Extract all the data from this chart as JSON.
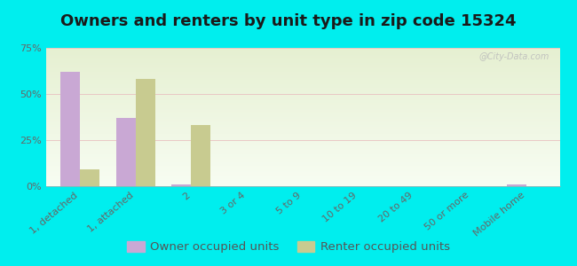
{
  "title": "Owners and renters by unit type in zip code 15324",
  "categories": [
    "1, detached",
    "1, attached",
    "2",
    "3 or 4",
    "5 to 9",
    "10 to 19",
    "20 to 49",
    "50 or more",
    "Mobile home"
  ],
  "owner_values": [
    62,
    37,
    1,
    0,
    0,
    0,
    0,
    0,
    1
  ],
  "renter_values": [
    9,
    58,
    33,
    0,
    0,
    0,
    0,
    0,
    0
  ],
  "owner_color": "#c9a8d4",
  "renter_color": "#c8cb90",
  "bg_color": "#00eeee",
  "ylim": [
    0,
    75
  ],
  "yticks": [
    0,
    25,
    50,
    75
  ],
  "ytick_labels": [
    "0%",
    "25%",
    "50%",
    "75%"
  ],
  "title_fontsize": 13,
  "tick_fontsize": 8,
  "legend_fontsize": 9.5,
  "bar_width": 0.35,
  "watermark": "@City-Data.com"
}
